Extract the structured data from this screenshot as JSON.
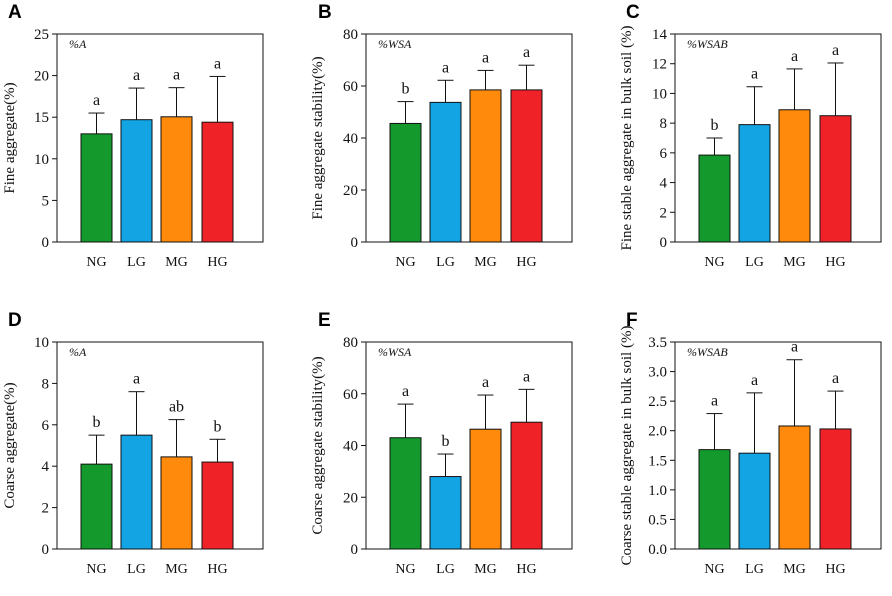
{
  "figure": {
    "categories": [
      "NG",
      "LG",
      "MG",
      "HG"
    ],
    "colors": [
      "#149a2c",
      "#13a4e4",
      "#ff8a0c",
      "#ef2227"
    ]
  },
  "chart_data": [
    {
      "type": "bar",
      "panel_label": "A",
      "tag": "%A",
      "ylabel": "Fine aggregate(%)",
      "categories": [
        "NG",
        "LG",
        "MG",
        "HG"
      ],
      "values": [
        13.0,
        14.7,
        15.05,
        14.4
      ],
      "errors": [
        2.5,
        3.8,
        3.5,
        5.5
      ],
      "letters": [
        "a",
        "a",
        "a",
        "a"
      ],
      "ylim": [
        0,
        25
      ],
      "yticks": [
        0,
        5,
        10,
        15,
        20,
        25
      ],
      "ytick_labels": [
        "0",
        "5",
        "10",
        "15",
        "20",
        "25"
      ]
    },
    {
      "type": "bar",
      "panel_label": "B",
      "tag": "%WSA",
      "ylabel": "Fine aggregate stability(%)",
      "categories": [
        "NG",
        "LG",
        "MG",
        "HG"
      ],
      "values": [
        45.6,
        53.7,
        58.5,
        58.5
      ],
      "errors": [
        8.4,
        8.5,
        7.5,
        9.5
      ],
      "letters": [
        "b",
        "a",
        "a",
        "a"
      ],
      "ylim": [
        0,
        80
      ],
      "yticks": [
        0,
        20,
        40,
        60,
        80
      ],
      "ytick_labels": [
        "0",
        "20",
        "40",
        "60",
        "80"
      ]
    },
    {
      "type": "bar",
      "panel_label": "C",
      "tag": "%WSAB",
      "ylabel": "Fine stable aggregate in bulk soil (%)",
      "categories": [
        "NG",
        "LG",
        "MG",
        "HG"
      ],
      "values": [
        5.85,
        7.9,
        8.9,
        8.5
      ],
      "errors": [
        1.15,
        2.55,
        2.75,
        3.55
      ],
      "letters": [
        "b",
        "a",
        "a",
        "a"
      ],
      "ylim": [
        0,
        14
      ],
      "yticks": [
        0,
        2,
        4,
        6,
        8,
        10,
        12,
        14
      ],
      "ytick_labels": [
        "0",
        "2",
        "4",
        "6",
        "8",
        "10",
        "12",
        "14"
      ]
    },
    {
      "type": "bar",
      "panel_label": "D",
      "tag": "%A",
      "ylabel": "Coarse aggregate(%)",
      "categories": [
        "NG",
        "LG",
        "MG",
        "HG"
      ],
      "values": [
        4.1,
        5.5,
        4.45,
        4.2
      ],
      "errors": [
        1.4,
        2.1,
        1.8,
        1.1
      ],
      "letters": [
        "b",
        "a",
        "ab",
        "b"
      ],
      "ylim": [
        0,
        10
      ],
      "yticks": [
        0,
        2,
        4,
        6,
        8,
        10
      ],
      "ytick_labels": [
        "0",
        "2",
        "4",
        "6",
        "8",
        "10"
      ]
    },
    {
      "type": "bar",
      "panel_label": "E",
      "tag": "%WSA",
      "ylabel": "Coarse aggregate stability(%)",
      "categories": [
        "NG",
        "LG",
        "MG",
        "HG"
      ],
      "values": [
        43.0,
        28.0,
        46.3,
        49.0
      ],
      "errors": [
        13.0,
        8.7,
        13.2,
        12.7
      ],
      "letters": [
        "a",
        "b",
        "a",
        "a"
      ],
      "ylim": [
        0,
        80
      ],
      "yticks": [
        0,
        20,
        40,
        60,
        80
      ],
      "ytick_labels": [
        "0",
        "20",
        "40",
        "60",
        "80"
      ]
    },
    {
      "type": "bar",
      "panel_label": "F",
      "tag": "%WSAB",
      "ylabel": "Coarse stable aggregate in bulk soil (%)",
      "categories": [
        "NG",
        "LG",
        "MG",
        "HG"
      ],
      "values": [
        1.68,
        1.62,
        2.08,
        2.03
      ],
      "errors": [
        0.61,
        1.02,
        1.12,
        0.64
      ],
      "letters": [
        "a",
        "a",
        "a",
        "a"
      ],
      "ylim": [
        0,
        3.5
      ],
      "yticks": [
        0,
        0.5,
        1.0,
        1.5,
        2.0,
        2.5,
        3.0,
        3.5
      ],
      "ytick_labels": [
        "0.0",
        "0.5",
        "1.0",
        "1.5",
        "2.0",
        "2.5",
        "3.0",
        "3.5"
      ]
    }
  ]
}
